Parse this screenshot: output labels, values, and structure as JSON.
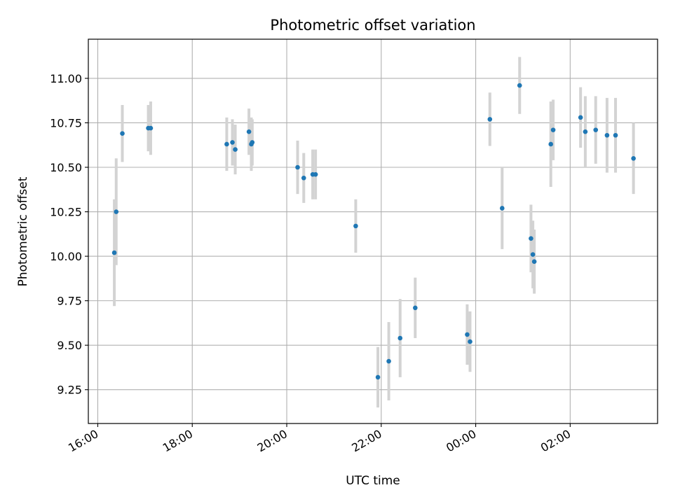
{
  "chart_data": {
    "type": "scatter",
    "title": "Photometric offset variation",
    "xlabel": "UTC time",
    "ylabel": "Photometric offset",
    "x_unit": "hours since 16:00 UTC",
    "xlim": [
      -0.2,
      11.85
    ],
    "ylim": [
      9.06,
      11.22
    ],
    "grid": true,
    "x_ticks": [
      {
        "value": 0,
        "label": "16:00"
      },
      {
        "value": 2,
        "label": "18:00"
      },
      {
        "value": 4,
        "label": "20:00"
      },
      {
        "value": 6,
        "label": "22:00"
      },
      {
        "value": 8,
        "label": "00:00"
      },
      {
        "value": 10,
        "label": "02:00"
      }
    ],
    "y_ticks": [
      {
        "value": 9.25,
        "label": "9.25"
      },
      {
        "value": 9.5,
        "label": "9.50"
      },
      {
        "value": 9.75,
        "label": "9.75"
      },
      {
        "value": 10.0,
        "label": "10.00"
      },
      {
        "value": 10.25,
        "label": "10.25"
      },
      {
        "value": 10.5,
        "label": "10.50"
      },
      {
        "value": 10.75,
        "label": "10.75"
      },
      {
        "value": 11.0,
        "label": "11.00"
      }
    ],
    "series": [
      {
        "color": "#1f77b4",
        "errorbar_color": "#d3d3d3",
        "points": [
          {
            "x": 0.35,
            "y": 10.02,
            "err": 0.3
          },
          {
            "x": 0.39,
            "y": 10.25,
            "err": 0.3
          },
          {
            "x": 0.52,
            "y": 10.69,
            "err": 0.16
          },
          {
            "x": 1.07,
            "y": 10.72,
            "err": 0.13
          },
          {
            "x": 1.12,
            "y": 10.72,
            "err": 0.15
          },
          {
            "x": 2.73,
            "y": 10.63,
            "err": 0.15
          },
          {
            "x": 2.85,
            "y": 10.64,
            "err": 0.13
          },
          {
            "x": 2.91,
            "y": 10.6,
            "err": 0.14
          },
          {
            "x": 3.2,
            "y": 10.7,
            "err": 0.13
          },
          {
            "x": 3.25,
            "y": 10.63,
            "err": 0.15
          },
          {
            "x": 3.27,
            "y": 10.64,
            "err": 0.13
          },
          {
            "x": 4.23,
            "y": 10.5,
            "err": 0.15
          },
          {
            "x": 4.36,
            "y": 10.44,
            "err": 0.14
          },
          {
            "x": 4.55,
            "y": 10.46,
            "err": 0.14
          },
          {
            "x": 4.61,
            "y": 10.46,
            "err": 0.14
          },
          {
            "x": 5.46,
            "y": 10.17,
            "err": 0.15
          },
          {
            "x": 5.93,
            "y": 9.32,
            "err": 0.17
          },
          {
            "x": 6.16,
            "y": 9.41,
            "err": 0.22
          },
          {
            "x": 6.4,
            "y": 9.54,
            "err": 0.22
          },
          {
            "x": 6.72,
            "y": 9.71,
            "err": 0.17
          },
          {
            "x": 7.82,
            "y": 9.56,
            "err": 0.17
          },
          {
            "x": 7.88,
            "y": 9.52,
            "err": 0.17
          },
          {
            "x": 8.3,
            "y": 10.77,
            "err": 0.15
          },
          {
            "x": 8.56,
            "y": 10.27,
            "err": 0.23
          },
          {
            "x": 8.93,
            "y": 10.96,
            "err": 0.16
          },
          {
            "x": 9.17,
            "y": 10.1,
            "err": 0.19
          },
          {
            "x": 9.21,
            "y": 10.01,
            "err": 0.19
          },
          {
            "x": 9.24,
            "y": 9.97,
            "err": 0.18
          },
          {
            "x": 9.59,
            "y": 10.63,
            "err": 0.24
          },
          {
            "x": 9.64,
            "y": 10.71,
            "err": 0.17
          },
          {
            "x": 10.22,
            "y": 10.78,
            "err": 0.17
          },
          {
            "x": 10.32,
            "y": 10.7,
            "err": 0.2
          },
          {
            "x": 10.54,
            "y": 10.71,
            "err": 0.19
          },
          {
            "x": 10.78,
            "y": 10.68,
            "err": 0.21
          },
          {
            "x": 10.96,
            "y": 10.68,
            "err": 0.21
          },
          {
            "x": 11.34,
            "y": 10.55,
            "err": 0.2
          }
        ]
      }
    ]
  }
}
